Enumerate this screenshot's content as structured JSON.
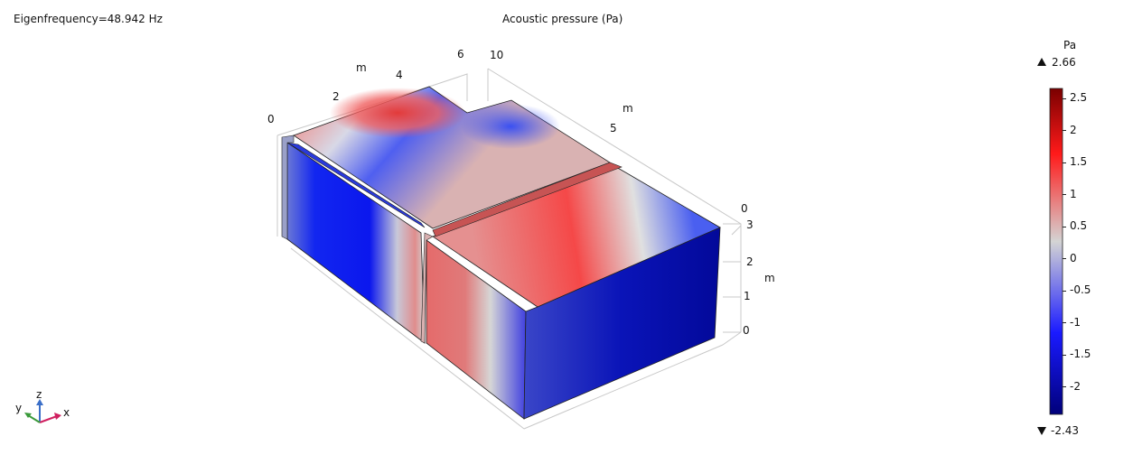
{
  "header": {
    "eigenfrequency": "Eigenfrequency=48.942 Hz",
    "plot_title": "Acoustic pressure (Pa)"
  },
  "axes": {
    "x_unit": "m",
    "x_ticks": [
      "0",
      "2",
      "4",
      "6"
    ],
    "y_unit": "m",
    "y_ticks": [
      "10",
      "5",
      "0"
    ],
    "z_unit": "m",
    "z_ticks": [
      "3",
      "2",
      "1",
      "0"
    ]
  },
  "colorbar": {
    "unit": "Pa",
    "max_label": "2.66",
    "min_label": "-2.43",
    "max_marker_icon": "triangle-up-icon",
    "min_marker_icon": "triangle-down-icon",
    "ticks": [
      "2.5",
      "2",
      "1.5",
      "1",
      "0.5",
      "0",
      "-0.5",
      "-1",
      "-1.5",
      "-2"
    ],
    "range": [
      -2.43,
      2.66
    ],
    "colors": {
      "high": "#7a0000",
      "mid": "#d4d4d4",
      "low": "#00007a"
    }
  },
  "triad": {
    "x": "x",
    "y": "y",
    "z": "z"
  }
}
